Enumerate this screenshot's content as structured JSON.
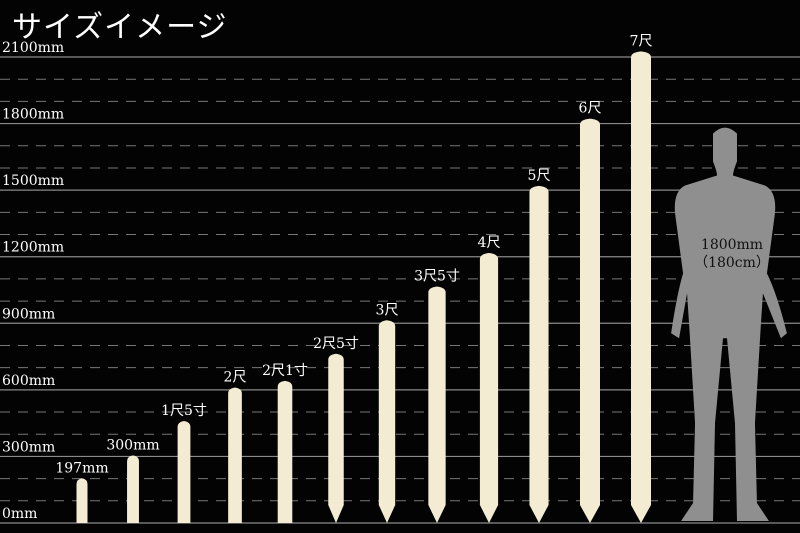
{
  "title": "サイズイメージ",
  "colors": {
    "background": "#030303",
    "stake": "#f3ecd2",
    "grid_major": "#8a8a8a",
    "grid_minor": "#777777",
    "human": "#8f8f8f"
  },
  "chart_data": {
    "type": "bar",
    "title": "サイズイメージ",
    "ylim": [
      0,
      2100
    ],
    "y_unit": "mm",
    "grid": "major every 300mm (solid), minor every 100mm (dashed)",
    "yticks": [
      "0mm",
      "300mm",
      "600mm",
      "900mm",
      "1200mm",
      "1500mm",
      "1800mm",
      "2100mm"
    ],
    "categories": [
      "197mm",
      "300mm",
      "1尺5寸",
      "2尺",
      "2尺1寸",
      "2尺5寸",
      "3尺",
      "3尺5寸",
      "4尺",
      "5尺",
      "6尺",
      "7尺"
    ],
    "values": [
      197,
      300,
      455,
      606,
      636,
      758,
      909,
      1061,
      1212,
      1515,
      1818,
      2121
    ]
  },
  "human": {
    "height_mm": 1800,
    "label_line1": "1800mm",
    "label_line2": "（180cm）"
  }
}
